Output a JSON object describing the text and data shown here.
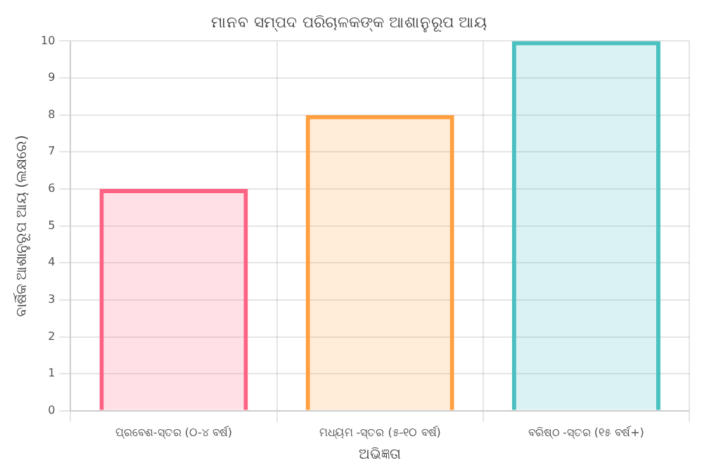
{
  "chart_data": {
    "type": "bar",
    "title": "ମାନବ ସମ୍ପଦ ପରିଚାଳକଙ୍କ ଆଶାନୁରୂପ ଆୟ",
    "xlabel": "ଅଭିଜ୍ଞତା",
    "ylabel": "ବାର୍ଷିକ ଆଶାନୁରୂପ ଆୟ (ଲକ୍ଷରେ)",
    "categories": [
      "ପ୍ରବେଶ-ସ୍ତର (୦-୪ ବର୍ଷ)",
      "ମଧ୍ୟମ -ସ୍ତର (୫-୧୦ ବର୍ଷ)",
      "ବରିଷ୍ଠ -ସ୍ତର (୧୫ ବର୍ଷ+)"
    ],
    "values": [
      6,
      8,
      10
    ],
    "colors": [
      "#ff6384",
      "#ff9f40",
      "#4bc0c0"
    ],
    "ylim": [
      0,
      10
    ],
    "yticks": [
      0,
      1,
      2,
      3,
      4,
      5,
      6,
      7,
      8,
      9,
      10
    ],
    "grid": true,
    "legend": false
  }
}
